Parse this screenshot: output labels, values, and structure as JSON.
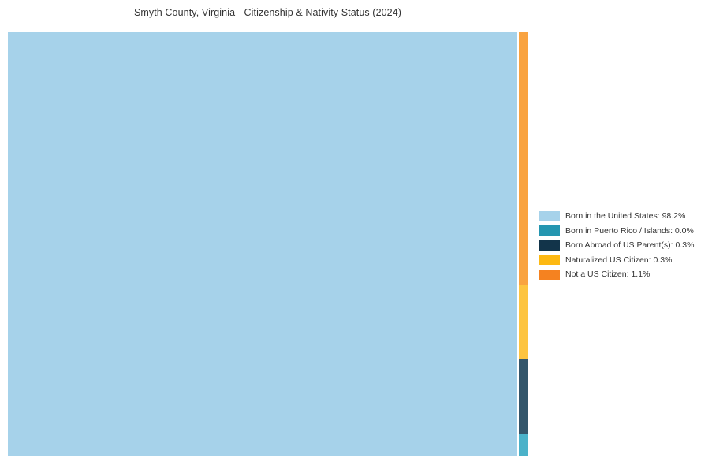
{
  "title": "Smyth County, Virginia - Citizenship & Nativity Status (2024)",
  "chart_data": {
    "type": "treemap",
    "title": "Smyth County, Virginia - Citizenship & Nativity Status (2024)",
    "legend_position": "right",
    "series": [
      {
        "name": "Born in the United States",
        "value_pct": 98.2,
        "legend_label": "Born in the United States: 98.2%",
        "color": "#a6d2ea",
        "tile_color": "#a6d2ea"
      },
      {
        "name": "Born in Puerto Rico / Islands",
        "value_pct": 0.0,
        "legend_label": "Born in Puerto Rico / Islands: 0.0%",
        "color": "#2596b0",
        "tile_color": "#4bb2c9"
      },
      {
        "name": "Born Abroad of US Parent(s)",
        "value_pct": 0.3,
        "legend_label": "Born Abroad of US Parent(s): 0.3%",
        "color": "#12344a",
        "tile_color": "#34566b"
      },
      {
        "name": "Naturalized US Citizen",
        "value_pct": 0.3,
        "legend_label": "Naturalized US Citizen: 0.3%",
        "color": "#fdb913",
        "tile_color": "#fdc440"
      },
      {
        "name": "Not a US Citizen",
        "value_pct": 1.1,
        "legend_label": "Not a US Citizen: 1.1%",
        "color": "#f58220",
        "tile_color": "#f9a340"
      }
    ],
    "layout_note_strip_order_top_to_bottom": [
      "Not a US Citizen",
      "Naturalized US Citizen",
      "Born Abroad of US Parent(s)",
      "Born in Puerto Rico / Islands"
    ],
    "background_color": "#ffffff",
    "title_color": "#333333",
    "legend_text_color": "#333333"
  }
}
